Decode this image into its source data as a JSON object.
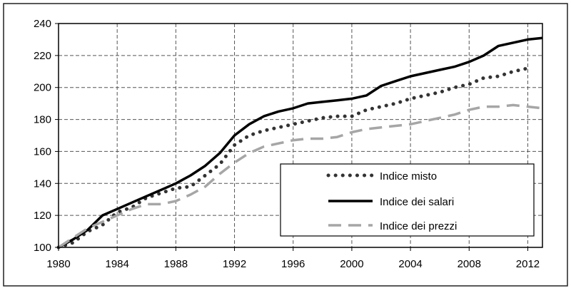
{
  "chart_data": {
    "type": "line",
    "title": "",
    "xlabel": "",
    "ylabel": "",
    "xlim": [
      1980,
      2013
    ],
    "ylim": [
      100,
      240
    ],
    "x_ticks": [
      "1980",
      "1984",
      "1988",
      "1992",
      "1996",
      "2000",
      "2004",
      "2008",
      "2012"
    ],
    "y_ticks": [
      "100",
      "120",
      "140",
      "160",
      "180",
      "200",
      "220",
      "240"
    ],
    "grid": true,
    "legend_position": "lower-right",
    "x": [
      1980,
      1981,
      1982,
      1983,
      1984,
      1985,
      1986,
      1987,
      1988,
      1989,
      1990,
      1991,
      1992,
      1993,
      1994,
      1995,
      1996,
      1997,
      1998,
      1999,
      2000,
      2001,
      2002,
      2003,
      2004,
      2005,
      2006,
      2007,
      2008,
      2009,
      2010,
      2011,
      2012,
      2013
    ],
    "series": [
      {
        "name": "Indice misto",
        "style": "dotted",
        "color": "#333333",
        "values": [
          100,
          103,
          110,
          114,
          122,
          125,
          131,
          134,
          137,
          138,
          145,
          152,
          164,
          170,
          173,
          175,
          177,
          179,
          181,
          182,
          182,
          186,
          188,
          190,
          193,
          195,
          197,
          200,
          202,
          206,
          207,
          210,
          212,
          null
        ]
      },
      {
        "name": "Indice dei salari",
        "style": "solid",
        "color": "#000000",
        "values": [
          100,
          105,
          111,
          120,
          124,
          128,
          132,
          136,
          140,
          145,
          151,
          159,
          170,
          177,
          182,
          185,
          187,
          190,
          191,
          192,
          193,
          195,
          201,
          204,
          207,
          209,
          211,
          213,
          216,
          220,
          226,
          228,
          230,
          231
        ]
      },
      {
        "name": "Indice dei prezzi",
        "style": "dashed",
        "color": "#a6a6a6",
        "values": [
          100,
          106,
          112,
          116,
          120,
          124,
          127,
          127,
          129,
          133,
          138,
          146,
          153,
          159,
          163,
          165,
          167,
          168,
          168,
          169,
          172,
          174,
          175,
          176,
          177,
          179,
          181,
          183,
          186,
          188,
          188,
          189,
          188,
          187
        ]
      }
    ]
  }
}
